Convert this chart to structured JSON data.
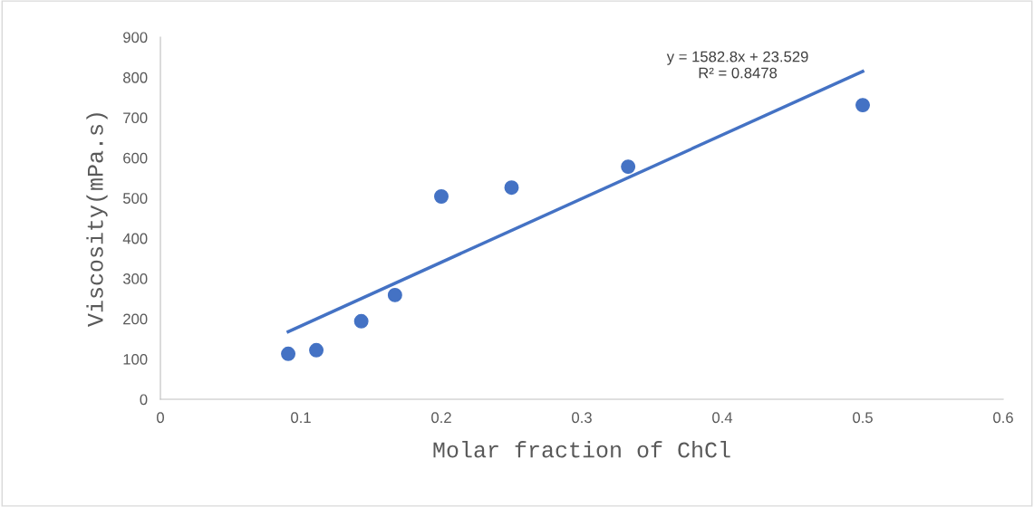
{
  "chart_data": {
    "type": "scatter",
    "xlabel": "Molar fraction of ChCl",
    "ylabel": "Viscosity(mPa.s)",
    "series": [
      {
        "marker": "circle",
        "color": "#4472c4",
        "x": [
          0.091,
          0.111,
          0.143,
          0.167,
          0.2,
          0.25,
          0.333,
          0.5
        ],
        "values": [
          113,
          122,
          194,
          259,
          504,
          526,
          578,
          731
        ]
      },
      {
        "type": "line",
        "color": "#4472c4",
        "x": [
          0.091,
          0.5
        ],
        "values": [
          168,
          815
        ]
      }
    ],
    "annotations": [
      "y = 1582.8x + 23.529\nR² = 0.8478"
    ],
    "xlim": [
      0,
      0.6
    ],
    "xticks": [
      0,
      0.1,
      0.2,
      0.3,
      0.4,
      0.5,
      0.6
    ],
    "ylim": [
      0,
      900
    ],
    "yticks": [
      0,
      100,
      200,
      300,
      400,
      500,
      600,
      700,
      800,
      900
    ],
    "grid": false,
    "legend": false
  }
}
